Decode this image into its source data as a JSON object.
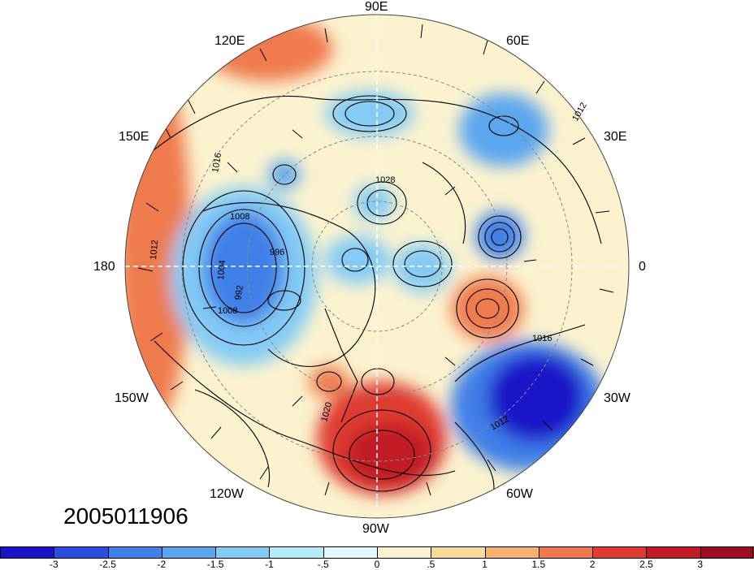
{
  "datestamp": "2005011906",
  "longitude_labels": {
    "lon_90e": "90E",
    "lon_60e": "60E",
    "lon_120e": "120E",
    "lon_30e": "30E",
    "lon_150e": "150E",
    "lon_0": "0",
    "lon_180": "180",
    "lon_30w": "30W",
    "lon_150w": "150W",
    "lon_60w": "60W",
    "lon_120w": "120W",
    "lon_90w": "90W"
  },
  "contour_labels": [
    "1028",
    "1016",
    "1012",
    "1008",
    "1004",
    "996",
    "992",
    "1020",
    "1016",
    "1012",
    "1008",
    "1012"
  ],
  "colorbar": {
    "ticks": [
      "-3",
      "-2.5",
      "-2",
      "-1.5",
      "-1",
      "-.5",
      "0",
      ".5",
      "1",
      "1.5",
      "2",
      "2.5",
      "3"
    ],
    "colors": [
      "#1a13c9",
      "#2a4ee0",
      "#3f7fe8",
      "#5ba6ef",
      "#83caf5",
      "#b5ecfa",
      "#e2f8fb",
      "#fbf3cf",
      "#f9dc9a",
      "#f6b070",
      "#ef7a4e",
      "#e03b33",
      "#c11b27",
      "#9e0d22"
    ]
  },
  "anomalies": [
    {
      "name": "blue-pacific-cold",
      "value": -2.0,
      "color": "#3f7fe8"
    },
    {
      "name": "red-north-america",
      "value": 2.5,
      "color": "#e03b33"
    },
    {
      "name": "blue-atlantic-cold",
      "value": -3.0,
      "color": "#1a13c9"
    },
    {
      "name": "red-europe-warm",
      "value": 1.5,
      "color": "#ef7a4e"
    }
  ]
}
